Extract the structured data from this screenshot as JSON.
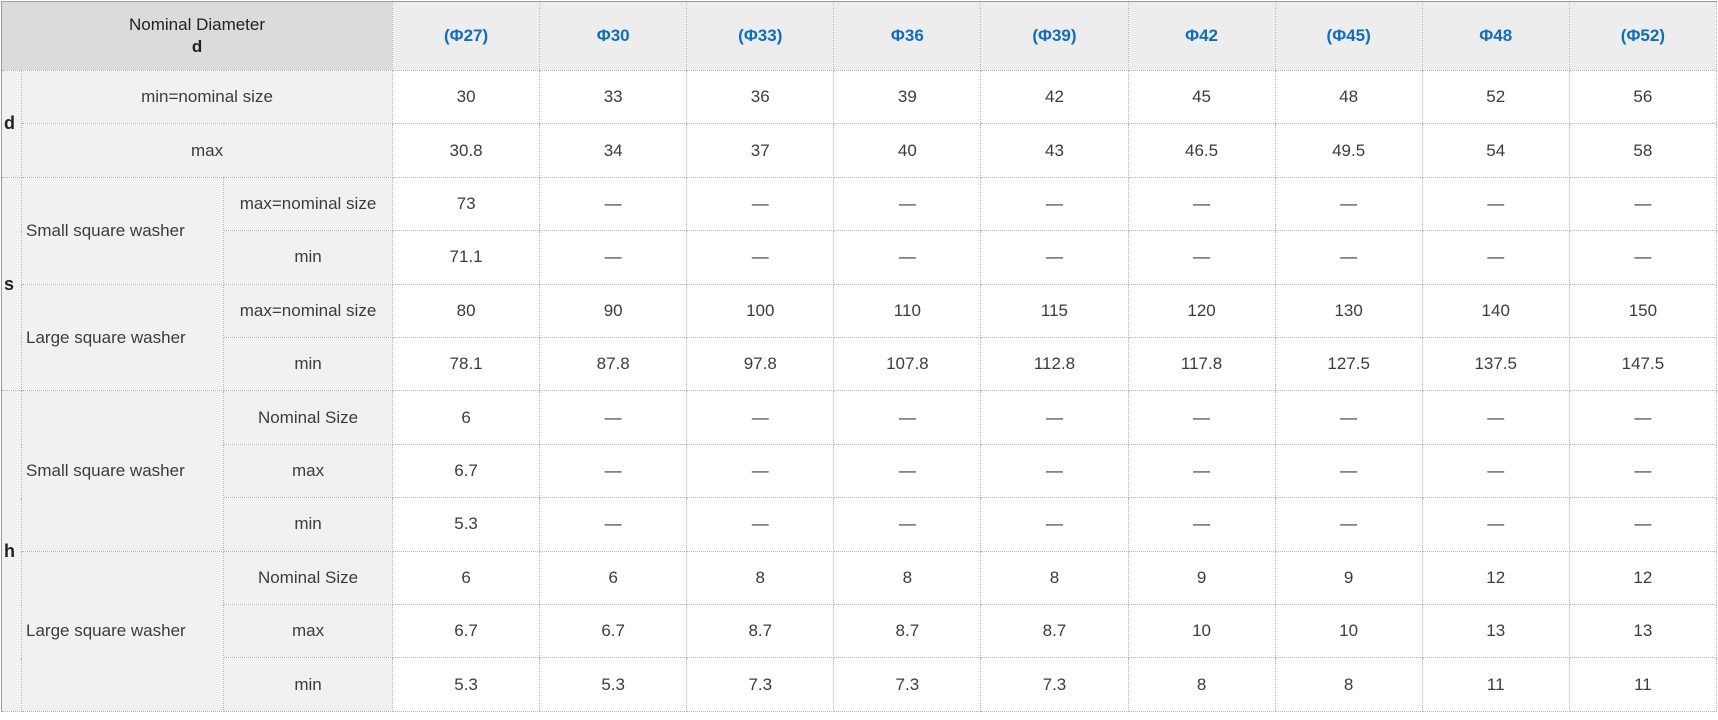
{
  "table": {
    "corner_header": {
      "line1": "Nominal Diameter",
      "line2": "d"
    },
    "columns": [
      "(Φ27)",
      "Φ30",
      "(Φ33)",
      "Φ36",
      "(Φ39)",
      "Φ42",
      "(Φ45)",
      "Φ48",
      "(Φ52)"
    ],
    "groups": [
      {
        "key": "d",
        "rows": [
          {
            "label": "min=nominal size",
            "values": [
              "30",
              "33",
              "36",
              "39",
              "42",
              "45",
              "48",
              "52",
              "56"
            ]
          },
          {
            "label": "max",
            "values": [
              "30.8",
              "34",
              "37",
              "40",
              "43",
              "46.5",
              "49.5",
              "54",
              "58"
            ]
          }
        ]
      },
      {
        "key": "s",
        "subgroups": [
          {
            "label": "Small square washer",
            "rows": [
              {
                "label": "max=nominal size",
                "values": [
                  "73",
                  "—",
                  "—",
                  "—",
                  "—",
                  "—",
                  "—",
                  "—",
                  "—"
                ]
              },
              {
                "label": "min",
                "values": [
                  "71.1",
                  "—",
                  "—",
                  "—",
                  "—",
                  "—",
                  "—",
                  "—",
                  "—"
                ]
              }
            ]
          },
          {
            "label": "Large square washer",
            "rows": [
              {
                "label": "max=nominal size",
                "values": [
                  "80",
                  "90",
                  "100",
                  "110",
                  "115",
                  "120",
                  "130",
                  "140",
                  "150"
                ]
              },
              {
                "label": "min",
                "values": [
                  "78.1",
                  "87.8",
                  "97.8",
                  "107.8",
                  "112.8",
                  "117.8",
                  "127.5",
                  "137.5",
                  "147.5"
                ]
              }
            ]
          }
        ]
      },
      {
        "key": "h",
        "subgroups": [
          {
            "label": "Small square washer",
            "rows": [
              {
                "label": "Nominal Size",
                "values": [
                  "6",
                  "—",
                  "—",
                  "—",
                  "—",
                  "—",
                  "—",
                  "—",
                  "—"
                ]
              },
              {
                "label": "max",
                "values": [
                  "6.7",
                  "—",
                  "—",
                  "—",
                  "—",
                  "—",
                  "—",
                  "—",
                  "—"
                ]
              },
              {
                "label": "min",
                "values": [
                  "5.3",
                  "—",
                  "—",
                  "—",
                  "—",
                  "—",
                  "—",
                  "—",
                  "—"
                ]
              }
            ]
          },
          {
            "label": "Large square washer",
            "rows": [
              {
                "label": "Nominal Size",
                "values": [
                  "6",
                  "6",
                  "8",
                  "8",
                  "8",
                  "9",
                  "9",
                  "12",
                  "12"
                ]
              },
              {
                "label": "max",
                "values": [
                  "6.7",
                  "6.7",
                  "8.7",
                  "8.7",
                  "8.7",
                  "10",
                  "10",
                  "13",
                  "13"
                ]
              },
              {
                "label": "min",
                "values": [
                  "5.3",
                  "5.3",
                  "7.3",
                  "7.3",
                  "7.3",
                  "8",
                  "8",
                  "11",
                  "11"
                ]
              }
            ]
          }
        ]
      }
    ],
    "colors": {
      "header_blue": "#0e6eb8",
      "corner_bg": "#dbdbdb",
      "column_header_bg": "#ededed",
      "label_bg": "#f1f1f1",
      "border": "#b3b3b3",
      "text": "#3c3c3c"
    }
  }
}
